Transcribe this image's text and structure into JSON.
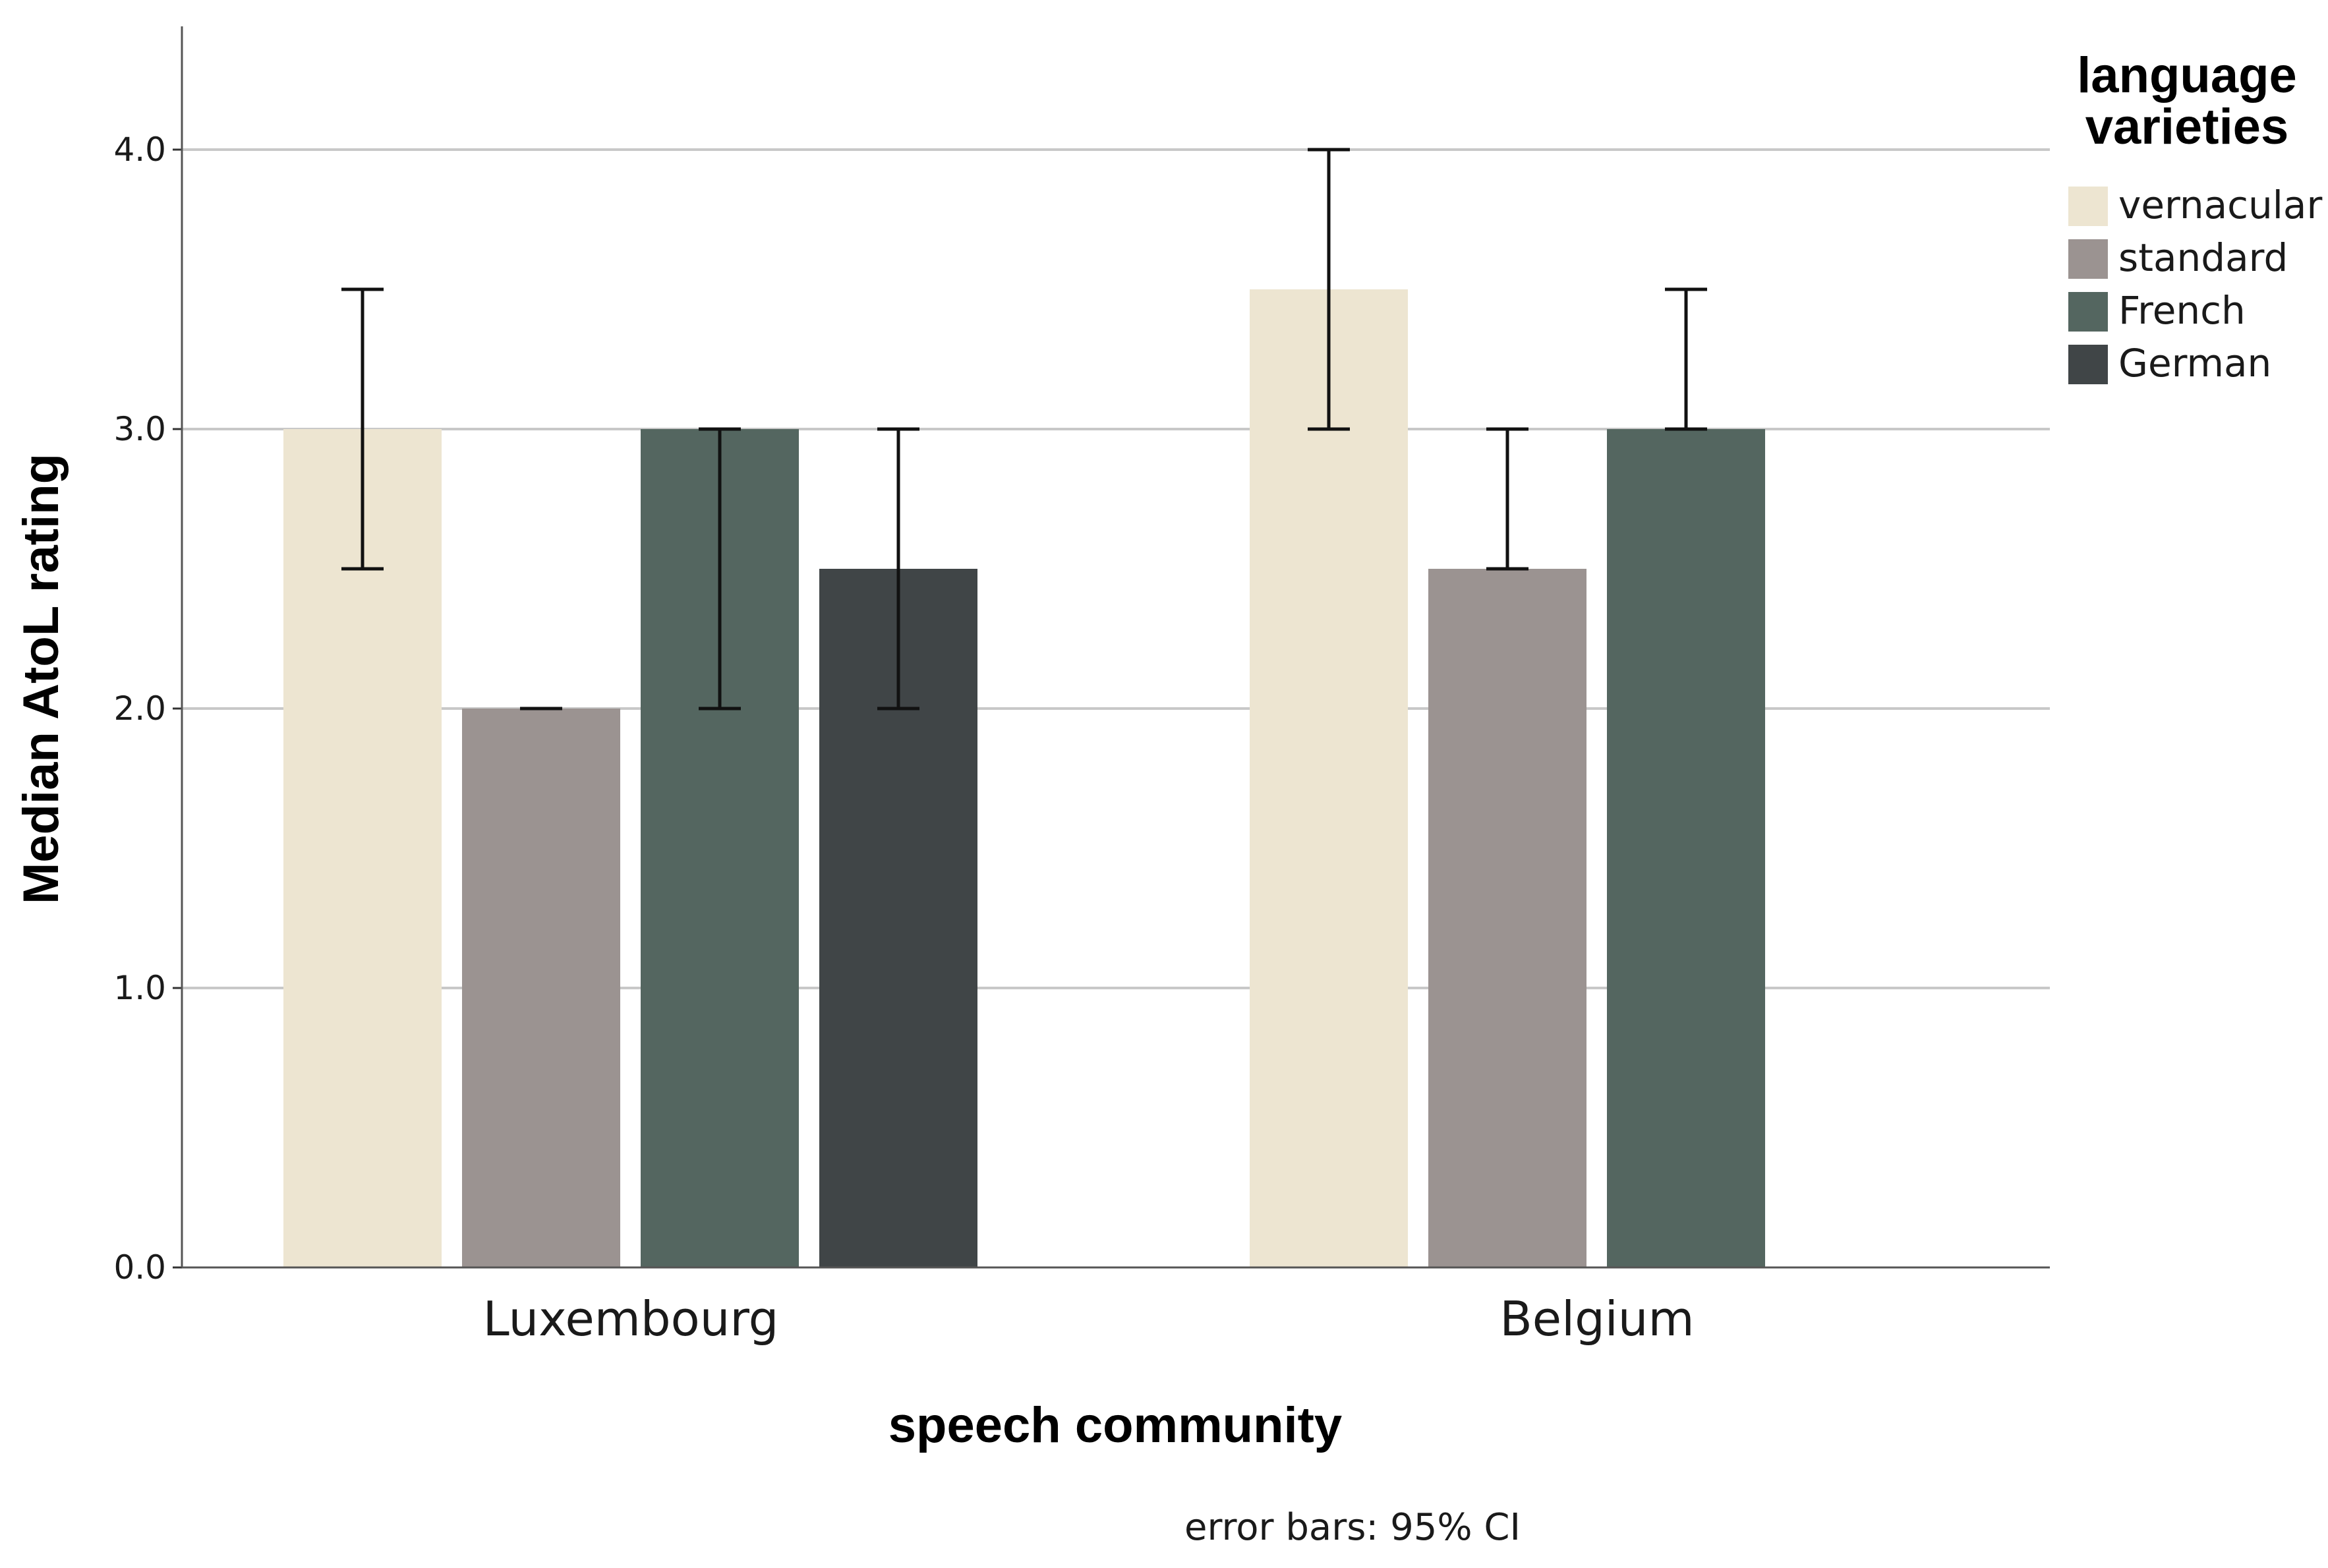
{
  "chart_data": {
    "type": "bar",
    "xlabel": "speech community",
    "ylabel": "Median AtoL rating",
    "ylim": [
      0,
      4.4
    ],
    "yticks": [
      "0.0",
      "1.0",
      "2.0",
      "3.0",
      "4.0"
    ],
    "grid": true,
    "categories": [
      "Luxembourg",
      "Belgium"
    ],
    "legend": {
      "title_line1": "language",
      "title_line2": "varieties",
      "position": "top-right"
    },
    "series": [
      {
        "name": "vernacular",
        "color": "#ede5d1",
        "values": [
          3.0,
          3.5
        ],
        "ci_low": [
          2.5,
          3.0
        ],
        "ci_high": [
          3.5,
          4.0
        ]
      },
      {
        "name": "standard",
        "color": "#9b9391",
        "values": [
          2.0,
          2.5
        ],
        "ci_low": [
          2.0,
          2.5
        ],
        "ci_high": [
          2.0,
          3.0
        ]
      },
      {
        "name": "French",
        "color": "#546660",
        "values": [
          3.0,
          3.0
        ],
        "ci_low": [
          2.0,
          3.0
        ],
        "ci_high": [
          3.0,
          3.5
        ]
      },
      {
        "name": "German",
        "color": "#404547",
        "values": [
          2.5,
          null
        ],
        "ci_low": [
          2.0,
          null
        ],
        "ci_high": [
          3.0,
          null
        ]
      }
    ],
    "footnote": "error bars: 95% CI"
  }
}
